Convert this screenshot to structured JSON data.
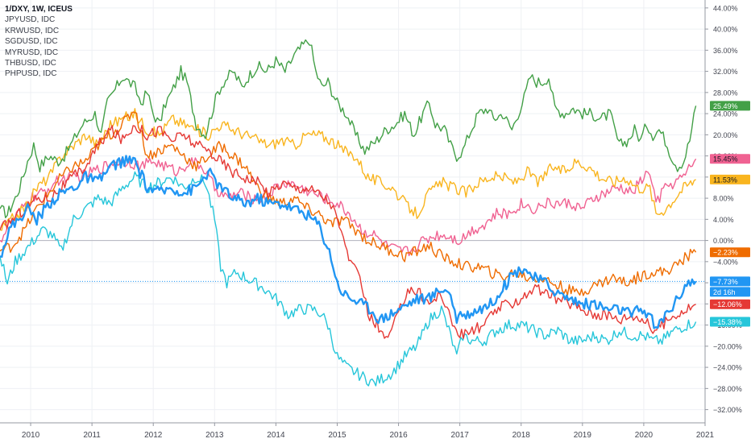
{
  "chart_data": {
    "type": "line",
    "title": "1/DXY, 1W, ICEUS",
    "x_unit": "year",
    "xlim": [
      2009.5,
      2021.0
    ],
    "ylim": [
      -34.5,
      45.5
    ],
    "y_ticks": [
      44,
      40,
      36,
      32,
      28,
      24,
      20,
      16,
      12,
      8,
      4,
      0,
      -4,
      -8,
      -12,
      -16,
      -20,
      -24,
      -28,
      -32
    ],
    "y_tick_labels": [
      "44.00%",
      "40.00%",
      "36.00%",
      "32.00%",
      "28.00%",
      "24.00%",
      "20.00%",
      "16.00%",
      "12.00%",
      "8.00%",
      "4.00%",
      "0.00%",
      "−4.00%",
      "−8.00%",
      "−12.00%",
      "−16.00%",
      "−20.00%",
      "−24.00%",
      "−28.00%",
      "−32.00%"
    ],
    "x_ticks": [
      2010,
      2011,
      2012,
      2013,
      2014,
      2015,
      2016,
      2017,
      2018,
      2019,
      2020,
      2021
    ],
    "x_tick_labels": [
      "2010",
      "2011",
      "2012",
      "2013",
      "2014",
      "2015",
      "2016",
      "2017",
      "2018",
      "2019",
      "2020",
      "2021"
    ],
    "grid": true,
    "zero_line": 0,
    "main_price_line": -7.73,
    "legend_position": "top-left",
    "legend": [
      "JPYUSD, IDC",
      "KRWUSD, IDC",
      "SGDUSD, IDC",
      "MYRUSD, IDC",
      "THBUSD, IDC",
      "PHPUSD, IDC"
    ],
    "series": [
      {
        "color": "#43a047",
        "end_label": "25.49%",
        "x": [
          2009.5,
          2009.62,
          2009.75,
          2009.85,
          2009.95,
          2010.05,
          2010.15,
          2010.3,
          2010.45,
          2010.55,
          2010.65,
          2010.75,
          2010.85,
          2010.95,
          2011.05,
          2011.15,
          2011.25,
          2011.35,
          2011.5,
          2011.6,
          2011.7,
          2011.8,
          2011.9,
          2012.0,
          2012.1,
          2012.2,
          2012.3,
          2012.45,
          2012.55,
          2012.7,
          2012.85,
          2012.95,
          2013.05,
          2013.15,
          2013.3,
          2013.45,
          2013.55,
          2013.7,
          2013.85,
          2014.0,
          2014.15,
          2014.3,
          2014.45,
          2014.55,
          2014.65,
          2014.75,
          2014.85,
          2015.0,
          2015.15,
          2015.3,
          2015.45,
          2015.55,
          2015.65,
          2015.8,
          2015.95,
          2016.1,
          2016.25,
          2016.4,
          2016.5,
          2016.6,
          2016.75,
          2016.85,
          2016.95,
          2017.05,
          2017.15,
          2017.3,
          2017.45,
          2017.55,
          2017.7,
          2017.85,
          2017.95,
          2018.05,
          2018.15,
          2018.25,
          2018.35,
          2018.45,
          2018.55,
          2018.7,
          2018.85,
          2019.0,
          2019.15,
          2019.3,
          2019.45,
          2019.6,
          2019.75,
          2019.85,
          2019.95,
          2020.05,
          2020.15,
          2020.25,
          2020.35,
          2020.45,
          2020.55,
          2020.65,
          2020.75,
          2020.85
        ],
        "values": [
          6,
          5,
          8,
          11,
          15,
          18,
          14,
          16,
          15,
          16,
          18,
          20,
          22,
          23,
          24,
          20,
          26,
          28,
          31,
          30,
          29,
          26,
          28,
          24,
          22,
          26,
          28,
          32,
          30,
          22,
          20,
          24,
          28,
          30,
          32,
          29,
          31,
          33,
          32,
          34,
          32,
          35,
          37,
          38,
          32,
          29,
          30,
          26,
          24,
          20,
          17,
          18,
          19,
          21,
          22,
          24,
          20,
          24,
          26,
          22,
          21,
          18,
          16,
          17,
          20,
          24,
          25,
          23,
          24,
          21,
          24,
          27,
          31,
          30,
          30,
          31,
          25,
          24,
          25,
          24,
          24,
          23,
          24,
          18,
          19,
          21,
          19,
          22,
          20,
          21,
          19,
          16,
          14,
          15,
          19,
          25.49
        ]
      },
      {
        "color": "#f06292",
        "end_label": "15.45%",
        "x": [
          2009.5,
          2009.65,
          2009.8,
          2010.0,
          2010.2,
          2010.4,
          2010.6,
          2010.8,
          2011.0,
          2011.2,
          2011.4,
          2011.6,
          2011.8,
          2012.0,
          2012.2,
          2012.4,
          2012.6,
          2012.8,
          2013.0,
          2013.2,
          2013.4,
          2013.6,
          2013.8,
          2014.0,
          2014.2,
          2014.4,
          2014.6,
          2014.8,
          2015.0,
          2015.2,
          2015.4,
          2015.6,
          2015.8,
          2016.0,
          2016.2,
          2016.4,
          2016.6,
          2016.8,
          2017.0,
          2017.2,
          2017.4,
          2017.6,
          2017.8,
          2018.0,
          2018.2,
          2018.4,
          2018.6,
          2018.8,
          2019.0,
          2019.2,
          2019.4,
          2019.6,
          2019.8,
          2020.0,
          2020.1,
          2020.2,
          2020.35,
          2020.5,
          2020.65,
          2020.85
        ],
        "values": [
          0,
          3,
          5,
          8,
          9,
          11,
          12,
          12,
          13,
          14,
          15,
          15,
          14,
          15,
          14,
          13,
          15,
          14,
          10,
          8,
          9,
          8,
          8,
          10,
          11,
          10,
          9,
          8,
          7,
          5,
          2,
          1,
          -1,
          -2,
          -2,
          0,
          1,
          1,
          0,
          2,
          3,
          5,
          5,
          7,
          6,
          7,
          7,
          7,
          6,
          8,
          9,
          10,
          9,
          12,
          13,
          7,
          10,
          11,
          12,
          15.45
        ]
      },
      {
        "color": "#f9b51f",
        "end_label": "11.53%",
        "x": [
          2009.5,
          2009.7,
          2009.9,
          2010.1,
          2010.3,
          2010.5,
          2010.7,
          2010.9,
          2011.1,
          2011.3,
          2011.5,
          2011.7,
          2011.9,
          2012.1,
          2012.3,
          2012.5,
          2012.7,
          2012.9,
          2013.1,
          2013.3,
          2013.5,
          2013.7,
          2013.9,
          2014.1,
          2014.3,
          2014.5,
          2014.7,
          2014.9,
          2015.1,
          2015.3,
          2015.5,
          2015.7,
          2015.9,
          2016.1,
          2016.3,
          2016.5,
          2016.7,
          2016.9,
          2017.1,
          2017.3,
          2017.5,
          2017.7,
          2017.9,
          2018.1,
          2018.3,
          2018.5,
          2018.7,
          2018.9,
          2019.1,
          2019.3,
          2019.5,
          2019.7,
          2019.9,
          2020.1,
          2020.2,
          2020.35,
          2020.5,
          2020.65,
          2020.85
        ],
        "values": [
          2,
          4,
          6,
          10,
          12,
          16,
          18,
          20,
          18,
          22,
          23,
          24,
          21,
          20,
          23,
          22,
          21,
          20,
          22,
          21,
          20,
          19,
          18,
          19,
          18,
          20,
          20,
          19,
          17,
          16,
          12,
          11,
          10,
          7,
          5,
          9,
          11,
          10,
          9,
          11,
          12,
          12,
          11,
          13,
          11,
          14,
          13,
          15,
          14,
          12,
          11,
          12,
          10,
          10,
          5,
          6,
          8,
          10,
          11.53
        ]
      },
      {
        "color": "#ef6c00",
        "end_label": "−2.23%",
        "x": [
          2009.5,
          2009.7,
          2009.9,
          2010.1,
          2010.3,
          2010.5,
          2010.7,
          2010.9,
          2011.1,
          2011.3,
          2011.5,
          2011.7,
          2011.9,
          2012.1,
          2012.3,
          2012.5,
          2012.7,
          2012.9,
          2013.1,
          2013.3,
          2013.5,
          2013.7,
          2013.9,
          2014.1,
          2014.3,
          2014.5,
          2014.7,
          2014.9,
          2015.1,
          2015.3,
          2015.5,
          2015.7,
          2015.9,
          2016.1,
          2016.3,
          2016.5,
          2016.7,
          2016.9,
          2017.1,
          2017.3,
          2017.5,
          2017.7,
          2017.9,
          2018.1,
          2018.3,
          2018.5,
          2018.7,
          2018.9,
          2019.1,
          2019.3,
          2019.5,
          2019.7,
          2019.9,
          2020.1,
          2020.3,
          2020.5,
          2020.7,
          2020.85
        ],
        "values": [
          -2,
          -1,
          2,
          6,
          9,
          12,
          14,
          15,
          18,
          20,
          22,
          25,
          16,
          17,
          18,
          16,
          14,
          16,
          18,
          16,
          14,
          10,
          8,
          7,
          8,
          6,
          5,
          3,
          4,
          2,
          0,
          -1,
          -2,
          -3,
          -2,
          -1,
          -3,
          -4,
          -5,
          -5,
          -6,
          -7,
          -6,
          -7,
          -7,
          -8,
          -9,
          -10,
          -9,
          -8,
          -7,
          -8,
          -7,
          -6,
          -6,
          -5,
          -3,
          -2.23
        ]
      },
      {
        "color": "#e53935",
        "end_label": "−12.06%",
        "x": [
          2009.5,
          2009.7,
          2009.9,
          2010.1,
          2010.3,
          2010.5,
          2010.7,
          2010.9,
          2011.1,
          2011.3,
          2011.5,
          2011.7,
          2011.9,
          2012.1,
          2012.3,
          2012.5,
          2012.7,
          2012.9,
          2013.1,
          2013.3,
          2013.5,
          2013.7,
          2013.9,
          2014.1,
          2014.3,
          2014.5,
          2014.7,
          2014.9,
          2015.0,
          2015.1,
          2015.25,
          2015.4,
          2015.5,
          2015.65,
          2015.8,
          2016.0,
          2016.15,
          2016.35,
          2016.5,
          2016.7,
          2016.85,
          2017.0,
          2017.2,
          2017.4,
          2017.6,
          2017.8,
          2018.0,
          2018.2,
          2018.4,
          2018.6,
          2018.8,
          2019.0,
          2019.2,
          2019.4,
          2019.6,
          2019.8,
          2020.0,
          2020.15,
          2020.3,
          2020.5,
          2020.7,
          2020.85
        ],
        "values": [
          2,
          4,
          6,
          8,
          8,
          10,
          12,
          14,
          18,
          21,
          19,
          22,
          20,
          21,
          19,
          20,
          18,
          17,
          15,
          13,
          12,
          11,
          9,
          11,
          10,
          10,
          9,
          7,
          4,
          0,
          -5,
          -8,
          -14,
          -16,
          -19,
          -14,
          -9,
          -10,
          -12,
          -10,
          -15,
          -18,
          -17,
          -16,
          -13,
          -12,
          -11,
          -9,
          -10,
          -11,
          -12,
          -13,
          -14,
          -14,
          -15,
          -14,
          -15,
          -17,
          -16,
          -14,
          -13,
          -12.06
        ]
      },
      {
        "color": "#2196f3",
        "end_label": "−7.73%",
        "x": [
          2009.5,
          2009.65,
          2009.8,
          2009.95,
          2010.1,
          2010.3,
          2010.5,
          2010.7,
          2010.9,
          2011.1,
          2011.3,
          2011.5,
          2011.7,
          2011.9,
          2012.1,
          2012.3,
          2012.5,
          2012.7,
          2012.9,
          2013.1,
          2013.3,
          2013.5,
          2013.7,
          2013.9,
          2014.1,
          2014.3,
          2014.5,
          2014.7,
          2014.9,
          2015.0,
          2015.1,
          2015.25,
          2015.4,
          2015.55,
          2015.7,
          2015.85,
          2016.0,
          2016.15,
          2016.3,
          2016.5,
          2016.7,
          2016.85,
          2016.95,
          2017.1,
          2017.3,
          2017.5,
          2017.7,
          2017.9,
          2018.05,
          2018.2,
          2018.4,
          2018.6,
          2018.8,
          2019.0,
          2019.2,
          2019.4,
          2019.6,
          2019.8,
          2019.95,
          2020.1,
          2020.2,
          2020.35,
          2020.5,
          2020.7,
          2020.85
        ],
        "values": [
          -3,
          2,
          4,
          6,
          4,
          7,
          9,
          10,
          12,
          11,
          14,
          15,
          15,
          10,
          9,
          10,
          9,
          10,
          13,
          10,
          8,
          7,
          8,
          7,
          7,
          6,
          5,
          3,
          -3,
          -8,
          -10,
          -11,
          -12,
          -13,
          -15,
          -14,
          -13,
          -12,
          -11,
          -11,
          -9,
          -10,
          -15,
          -14,
          -13,
          -12,
          -9,
          -6,
          -5,
          -7,
          -8,
          -10,
          -11,
          -12,
          -12,
          -13,
          -13,
          -14,
          -13,
          -14,
          -17,
          -14,
          -12,
          -8,
          -7.73
        ]
      },
      {
        "color": "#26c6da",
        "end_label": "−15.38%",
        "x": [
          2009.5,
          2009.62,
          2009.75,
          2009.9,
          2010.05,
          2010.2,
          2010.35,
          2010.5,
          2010.7,
          2010.9,
          2011.1,
          2011.3,
          2011.5,
          2011.7,
          2011.9,
          2012.1,
          2012.3,
          2012.5,
          2012.7,
          2012.85,
          2013.0,
          2013.1,
          2013.2,
          2013.35,
          2013.5,
          2013.65,
          2013.8,
          2014.0,
          2014.2,
          2014.4,
          2014.6,
          2014.75,
          2014.85,
          2015.0,
          2015.15,
          2015.3,
          2015.45,
          2015.6,
          2015.75,
          2015.9,
          2016.1,
          2016.3,
          2016.5,
          2016.7,
          2016.85,
          2016.95,
          2017.05,
          2017.2,
          2017.4,
          2017.6,
          2017.8,
          2018.0,
          2018.2,
          2018.4,
          2018.6,
          2018.8,
          2019.0,
          2019.2,
          2019.4,
          2019.6,
          2019.8,
          2020.0,
          2020.15,
          2020.3,
          2020.5,
          2020.7,
          2020.85
        ],
        "values": [
          -3,
          -8,
          -4,
          -2,
          0,
          2,
          1,
          -2,
          4,
          6,
          8,
          7,
          10,
          12,
          10,
          11,
          12,
          10,
          12,
          11,
          4,
          -5,
          -8,
          -6,
          -7,
          -8,
          -9,
          -11,
          -14,
          -13,
          -13,
          -14,
          -16,
          -22,
          -24,
          -25,
          -26,
          -27,
          -26,
          -25,
          -22,
          -20,
          -15,
          -13,
          -18,
          -22,
          -18,
          -19,
          -19,
          -17,
          -16,
          -16,
          -17,
          -18,
          -17,
          -19,
          -19,
          -18,
          -19,
          -17,
          -18,
          -18,
          -19,
          -19,
          -17,
          -16,
          -15.38
        ]
      }
    ],
    "countdown_label": "2d 16h"
  }
}
